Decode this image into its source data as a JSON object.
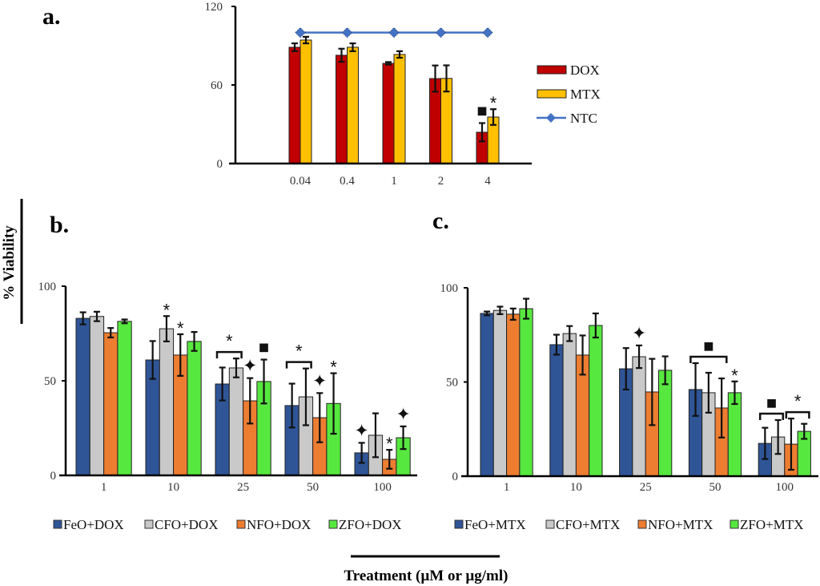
{
  "figure": {
    "y_axis_title": "% Viability",
    "x_axis_title": "Treatment (µM or µg/ml)"
  },
  "chart_data": [
    {
      "id": "a",
      "panel_label": "a.",
      "type": "bar",
      "categories": [
        "0.04",
        "0.4",
        "1",
        "2",
        "4"
      ],
      "ylim": [
        0,
        120
      ],
      "yticks": [
        0,
        60,
        120
      ],
      "legend_position": "right",
      "series": [
        {
          "name": "DOX",
          "kind": "bar",
          "color": "#C00000",
          "values": [
            88.8,
            82.7,
            76.5,
            64.9,
            23.9
          ],
          "errors": [
            3,
            5,
            1,
            10,
            7
          ]
        },
        {
          "name": "MTX",
          "kind": "bar",
          "color": "#FFC000",
          "values": [
            94.3,
            88.8,
            83.3,
            65,
            35.5
          ],
          "errors": [
            2.5,
            3,
            2.5,
            10,
            6
          ]
        },
        {
          "name": "NTC",
          "kind": "line",
          "color": "#4472C4",
          "values": [
            100,
            100,
            100,
            100,
            100
          ]
        }
      ],
      "annotations": [
        {
          "category": 4,
          "series": 0,
          "symbol": "■"
        },
        {
          "category": 4,
          "series": 1,
          "symbol": "*"
        }
      ]
    },
    {
      "id": "b",
      "panel_label": "b.",
      "type": "bar",
      "categories": [
        "1",
        "10",
        "25",
        "50",
        "100"
      ],
      "ylim": [
        0,
        100
      ],
      "yticks": [
        0,
        50,
        100
      ],
      "legend_position": "bottom",
      "series": [
        {
          "name": "FeO+DOX",
          "color": "#2F5597",
          "values": [
            83,
            61,
            48.3,
            36.9,
            11.9
          ],
          "errors": [
            3.2,
            10,
            8.7,
            11.6,
            5.3
          ]
        },
        {
          "name": "CFO+DOX",
          "color": "#C9C9C9",
          "values": [
            84,
            77.5,
            56.8,
            41.5,
            21.2
          ],
          "errors": [
            2.5,
            6.7,
            5,
            15,
            11.6
          ]
        },
        {
          "name": "NFO+DOX",
          "color": "#ED7D31",
          "values": [
            75.4,
            63.6,
            39.4,
            30.5,
            8.5
          ],
          "errors": [
            2.5,
            11,
            12,
            13,
            5
          ]
        },
        {
          "name": "ZFO+DOX",
          "color": "#57E83F",
          "values": [
            81.4,
            70.8,
            49.6,
            38,
            19.9
          ],
          "errors": [
            1,
            5,
            11.6,
            16,
            6
          ]
        }
      ],
      "annotations": [
        {
          "category": 1,
          "series": 1,
          "symbol": "*"
        },
        {
          "category": 1,
          "series": 2,
          "symbol": "*"
        },
        {
          "category": 2,
          "bracket": [
            0,
            1
          ],
          "symbol": "*"
        },
        {
          "category": 2,
          "series": 2,
          "symbol": "✦"
        },
        {
          "category": 2,
          "series": 3,
          "symbol": "■"
        },
        {
          "category": 3,
          "bracket": [
            0,
            1
          ],
          "symbol": "*"
        },
        {
          "category": 3,
          "series": 2,
          "symbol": "✦"
        },
        {
          "category": 3,
          "series": 3,
          "symbol": "*"
        },
        {
          "category": 4,
          "series": 0,
          "symbol": "✦"
        },
        {
          "category": 4,
          "series": 2,
          "symbol": "*"
        },
        {
          "category": 4,
          "series": 3,
          "symbol": "✦"
        }
      ]
    },
    {
      "id": "c",
      "panel_label": "c.",
      "type": "bar",
      "categories": [
        "1",
        "10",
        "25",
        "50",
        "100"
      ],
      "ylim": [
        0,
        100
      ],
      "yticks": [
        0,
        50,
        100
      ],
      "legend_position": "bottom",
      "series": [
        {
          "name": "FeO+MTX",
          "color": "#2F5597",
          "values": [
            86.4,
            69.8,
            57,
            46,
            17.4
          ],
          "errors": [
            1,
            5.3,
            11,
            14,
            8.3
          ]
        },
        {
          "name": "CFO+MTX",
          "color": "#C9C9C9",
          "values": [
            88,
            75.7,
            63.4,
            44.3,
            20.8
          ],
          "errors": [
            2,
            4,
            6,
            10.6,
            9
          ]
        },
        {
          "name": "NFO+MTX",
          "color": "#ED7D31",
          "values": [
            86,
            64.3,
            44.7,
            36.2,
            17
          ],
          "errors": [
            3,
            10.4,
            17.6,
            15.7,
            13.6
          ]
        },
        {
          "name": "ZFO+MTX",
          "color": "#57E83F",
          "values": [
            88.9,
            80,
            56.2,
            44.3,
            23.8
          ],
          "errors": [
            5.3,
            6.4,
            7.4,
            6,
            4
          ]
        }
      ],
      "annotations": [
        {
          "category": 2,
          "series": 1,
          "symbol": "✦"
        },
        {
          "category": 3,
          "bracket": [
            0,
            2
          ],
          "symbol": "■"
        },
        {
          "category": 3,
          "series": 3,
          "symbol": "*"
        },
        {
          "category": 4,
          "bracket": [
            0,
            1
          ],
          "symbol": "■"
        },
        {
          "category": 4,
          "bracket": [
            2,
            3
          ],
          "symbol": "*"
        }
      ]
    }
  ]
}
